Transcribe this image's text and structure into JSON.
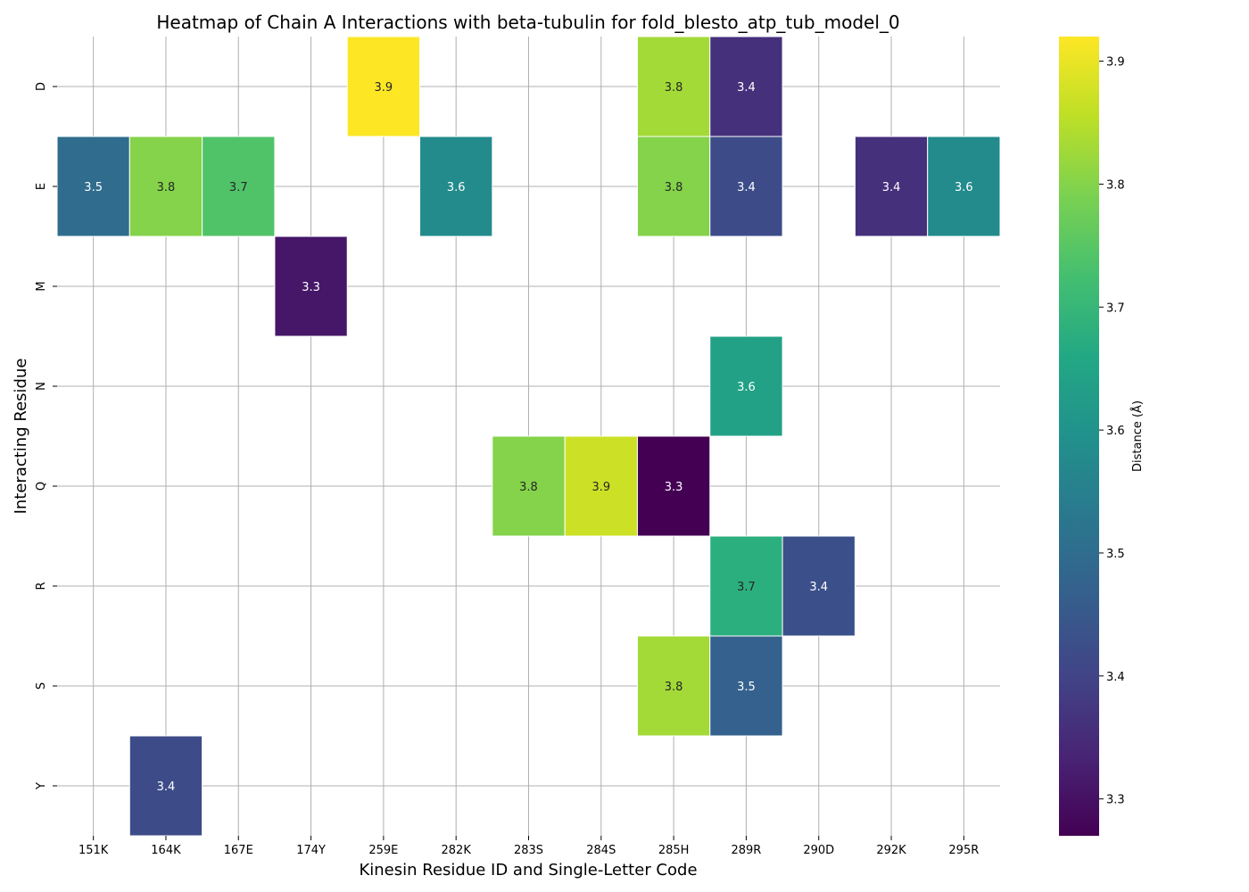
{
  "chart_data": {
    "type": "heatmap",
    "title": "Heatmap of Chain A Interactions with beta-tubulin for fold_blesto_atp_tub_model_0",
    "xlabel": "Kinesin Residue ID and Single-Letter Code",
    "ylabel": "Interacting Residue",
    "x_categories": [
      "151K",
      "164K",
      "167E",
      "174Y",
      "259E",
      "282K",
      "283S",
      "284S",
      "285H",
      "289R",
      "290D",
      "292K",
      "295R"
    ],
    "y_categories": [
      "D",
      "E",
      "M",
      "N",
      "Q",
      "R",
      "S",
      "Y"
    ],
    "cells": [
      {
        "x": "259E",
        "y": "D",
        "value": 3.92,
        "label": "3.9"
      },
      {
        "x": "285H",
        "y": "D",
        "value": 3.83,
        "label": "3.8"
      },
      {
        "x": "289R",
        "y": "D",
        "value": 3.36,
        "label": "3.4"
      },
      {
        "x": "151K",
        "y": "E",
        "value": 3.5,
        "label": "3.5"
      },
      {
        "x": "164K",
        "y": "E",
        "value": 3.8,
        "label": "3.8"
      },
      {
        "x": "167E",
        "y": "E",
        "value": 3.74,
        "label": "3.7"
      },
      {
        "x": "282K",
        "y": "E",
        "value": 3.58,
        "label": "3.6"
      },
      {
        "x": "285H",
        "y": "E",
        "value": 3.8,
        "label": "3.8"
      },
      {
        "x": "289R",
        "y": "E",
        "value": 3.42,
        "label": "3.4"
      },
      {
        "x": "292K",
        "y": "E",
        "value": 3.36,
        "label": "3.4"
      },
      {
        "x": "295R",
        "y": "E",
        "value": 3.58,
        "label": "3.6"
      },
      {
        "x": "174Y",
        "y": "M",
        "value": 3.31,
        "label": "3.3"
      },
      {
        "x": "289R",
        "y": "N",
        "value": 3.64,
        "label": "3.6"
      },
      {
        "x": "283S",
        "y": "Q",
        "value": 3.8,
        "label": "3.8"
      },
      {
        "x": "284S",
        "y": "Q",
        "value": 3.87,
        "label": "3.9"
      },
      {
        "x": "285H",
        "y": "Q",
        "value": 3.27,
        "label": "3.3"
      },
      {
        "x": "289R",
        "y": "R",
        "value": 3.68,
        "label": "3.7"
      },
      {
        "x": "290D",
        "y": "R",
        "value": 3.43,
        "label": "3.4"
      },
      {
        "x": "285H",
        "y": "S",
        "value": 3.83,
        "label": "3.8"
      },
      {
        "x": "289R",
        "y": "S",
        "value": 3.47,
        "label": "3.5"
      },
      {
        "x": "164K",
        "y": "Y",
        "value": 3.42,
        "label": "3.4"
      }
    ],
    "colorbar": {
      "label": "Distance (Å)",
      "vmin": 3.27,
      "vmax": 3.92,
      "ticks": [
        3.3,
        3.4,
        3.5,
        3.6,
        3.7,
        3.8,
        3.9
      ],
      "colormap": "viridis"
    },
    "grid": true
  }
}
